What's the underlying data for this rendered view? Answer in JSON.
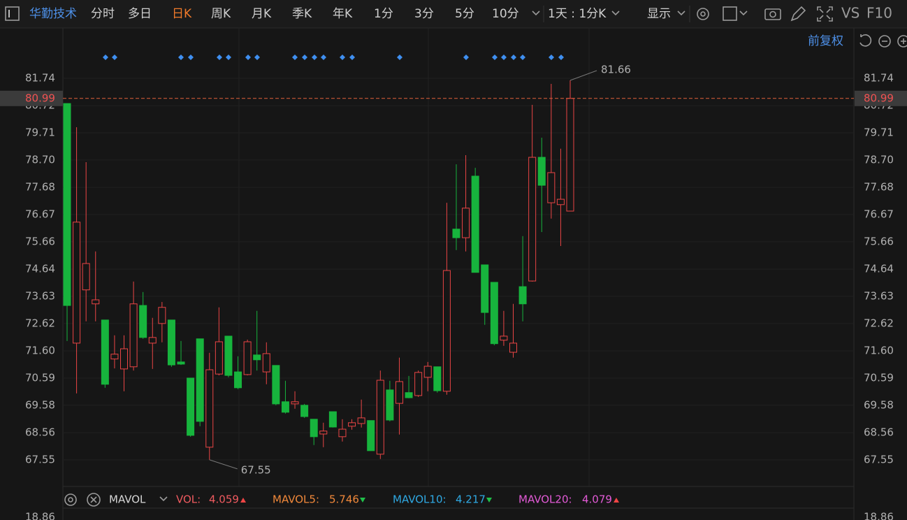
{
  "toolbar": {
    "stock_name": "华勤技术",
    "periods": [
      "分时",
      "多日",
      "日K",
      "周K",
      "月K",
      "季K",
      "年K",
      "1分",
      "3分",
      "5分",
      "10分"
    ],
    "interval": "1天 : 1分K",
    "display": "显示",
    "compare": "VS",
    "f10": "F10",
    "adjust": "前复权"
  },
  "chart_data": {
    "type": "candlestick",
    "open": [
      80.8,
      71.89,
      73.87,
      73.35,
      72.75,
      71.3,
      70.93,
      71.01,
      73.29,
      71.89,
      72.62,
      72.75,
      71.19,
      70.59,
      72.05,
      68.02,
      70.74,
      72.15,
      70.82,
      70.72,
      71.45,
      70.82,
      71.06,
      69.71,
      69.63,
      69.58,
      69.06,
      68.51,
      69.34,
      68.41,
      68.8,
      68.9,
      69.01,
      67.76,
      70.15,
      69.65,
      70.05,
      69.94,
      70.62,
      71.01,
      70.1,
      76.13,
      75.81,
      78.1,
      74.8,
      74.15,
      72.0,
      71.55,
      73.99,
      74.2,
      78.8,
      77.11,
      77.04,
      76.8
    ],
    "high": [
      80.8,
      79.92,
      78.62,
      75.3,
      72.75,
      72.18,
      72.18,
      74.18,
      73.79,
      72.83,
      73.42,
      72.75,
      71.97,
      70.59,
      72.05,
      71.53,
      73.22,
      72.15,
      71.4,
      72.02,
      73.09,
      71.92,
      71.06,
      70.49,
      70.1,
      69.63,
      69.06,
      68.93,
      69.34,
      69.06,
      69.06,
      69.79,
      69.01,
      70.87,
      70.49,
      71.35,
      70.67,
      70.87,
      71.19,
      71.01,
      77.11,
      78.54,
      78.88,
      78.41,
      74.8,
      74.15,
      73.09,
      73.35,
      75.87,
      80.75,
      79.53,
      81.53,
      79.12,
      81.66
    ],
    "low": [
      71.97,
      70.02,
      72.7,
      72.7,
      70.23,
      70.95,
      70.1,
      70.87,
      72.05,
      70.93,
      71.92,
      71.01,
      71.08,
      68.41,
      68.8,
      67.55,
      70.69,
      70.62,
      70.18,
      70.69,
      70.87,
      70.36,
      69.58,
      69.27,
      69.45,
      69.11,
      68.1,
      68.02,
      68.75,
      68.23,
      68.67,
      68.75,
      67.89,
      67.58,
      68.98,
      68.49,
      69.84,
      69.89,
      70.1,
      70.05,
      69.97,
      75.35,
      75.3,
      74.52,
      72.57,
      71.81,
      71.79,
      71.35,
      72.7,
      74.18,
      76.02,
      76.52,
      75.5,
      76.8
    ],
    "close": [
      73.29,
      76.39,
      74.85,
      73.5,
      70.36,
      71.48,
      71.68,
      73.35,
      72.1,
      72.1,
      73.22,
      71.08,
      71.11,
      68.46,
      68.98,
      70.9,
      71.94,
      70.69,
      70.23,
      71.94,
      71.27,
      71.5,
      69.63,
      69.32,
      69.71,
      69.16,
      68.41,
      68.62,
      68.77,
      68.69,
      68.93,
      69.11,
      67.89,
      70.51,
      69.03,
      70.46,
      69.86,
      70.8,
      71.03,
      70.12,
      74.59,
      75.81,
      76.91,
      74.52,
      73.03,
      71.87,
      72.15,
      71.89,
      73.35,
      78.8,
      77.76,
      78.23,
      77.24,
      80.99
    ],
    "ylim": [
      66.56,
      83.61
    ],
    "yticks": [
      67.55,
      68.56,
      69.58,
      70.59,
      {
        "value": 71.6,
        "label": "71.60"
      },
      72.62,
      73.63,
      74.64,
      75.66,
      76.67,
      77.68,
      {
        "value": 78.7,
        "label": "78.70"
      },
      79.71,
      80.72,
      81.74
    ],
    "up_color": "#ea4545",
    "down_color": "#17b43d",
    "last_price": 80.99,
    "high_marker": 81.66,
    "low_marker": 67.55,
    "grid": true
  },
  "indicator": {
    "name": "MAVOL",
    "items": [
      {
        "label": "VOL:",
        "value": "4.059",
        "color": "#ef5a5f",
        "trend": "up"
      },
      {
        "label": "MAVOL5:",
        "value": "5.746",
        "color": "#f0883a",
        "trend": "down"
      },
      {
        "label": "MAVOL10:",
        "value": "4.217",
        "color": "#2fa8e2",
        "trend": "down"
      },
      {
        "label": "MAVOL20:",
        "value": "4.079",
        "color": "#e25ad6",
        "trend": "up"
      }
    ],
    "axis_top": "18.86"
  }
}
